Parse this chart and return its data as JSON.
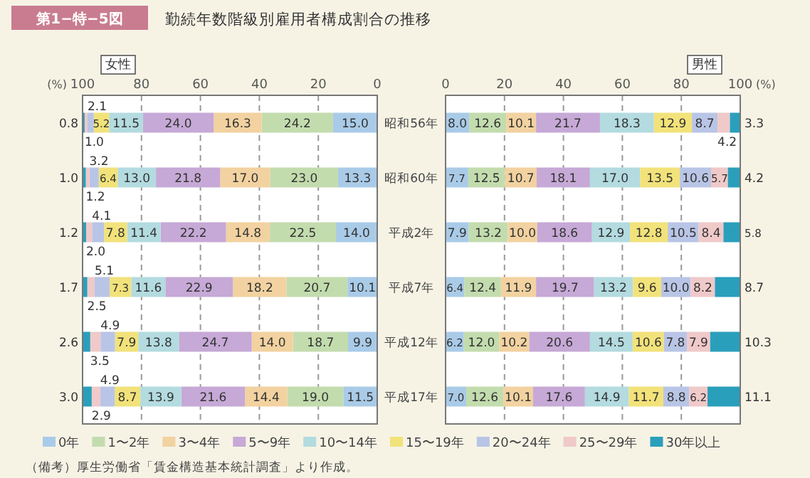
{
  "chart_data": [
    {
      "type": "bar",
      "orientation": "horizontal",
      "stacked": true,
      "title": "女性",
      "xlabel": "(%)",
      "categories": [
        null,
        null,
        null,
        null,
        null,
        null
      ],
      "xlim": [
        100,
        0
      ],
      "xticks": [
        100,
        80,
        60,
        40,
        20,
        0
      ],
      "grid": "x",
      "tick_labels": "x",
      "legend": "bottom",
      "annotations": [
        "第1−特−5図",
        "勤続年数階級別雇用者構成割合の推移",
        "（備考）厚生労働省「賃金構造基本統計調査」より作成。"
      ],
      "series": [
        {
          "name": "0年",
          "color": "#a9cbe8",
          "values": [
            15.0,
            13.3,
            14.0,
            10.1,
            9.9,
            11.5
          ],
          "value_labels": [
            "15.0",
            "13.3",
            "14.0",
            "10.1",
            "9.9",
            "11.5"
          ]
        },
        {
          "name": "1〜2年",
          "color": "#c3dcae",
          "values": [
            24.2,
            23.0,
            22.5,
            20.7,
            18.7,
            19.0
          ],
          "value_labels": [
            "24.2",
            "23.0",
            "22.5",
            "20.7",
            "18.7",
            "19.0"
          ]
        },
        {
          "name": "3〜4年",
          "color": "#f2d2a0",
          "values": [
            16.3,
            17.0,
            14.8,
            18.2,
            14.0,
            14.4
          ],
          "value_labels": [
            "16.3",
            "17.0",
            "14.8",
            "18.2",
            "14.0",
            "14.4"
          ]
        },
        {
          "name": "5〜9年",
          "color": "#c6a9d6",
          "values": [
            24.0,
            21.8,
            22.2,
            22.9,
            24.7,
            21.6
          ],
          "value_labels": [
            "24.0",
            "21.8",
            "22.2",
            "22.9",
            "24.7",
            "21.6"
          ]
        },
        {
          "name": "10〜14年",
          "color": "#b3dbe0",
          "values": [
            11.5,
            13.0,
            11.4,
            11.6,
            13.8,
            13.9
          ],
          "value_labels": [
            "11.5",
            "13.0",
            "11.4",
            "11.6",
            "13.8",
            "13.9"
          ]
        },
        {
          "name": "15〜19年",
          "color": "#f2e27a",
          "values": [
            5.2,
            6.4,
            7.8,
            7.3,
            7.9,
            8.7
          ],
          "value_labels": [
            "5.2",
            "6.4",
            "7.8",
            "7.3",
            "7.9",
            "8.7"
          ]
        },
        {
          "name": "20〜24年",
          "color": "#b9c5e6",
          "values": [
            2.1,
            3.2,
            4.1,
            5.1,
            4.9,
            4.9
          ],
          "value_labels": [
            "2.1",
            "3.2",
            "4.1",
            "5.1",
            "4.9",
            "4.9"
          ]
        },
        {
          "name": "25〜29年",
          "color": "#f0c9c9",
          "values": [
            1.0,
            1.2,
            2.0,
            2.5,
            3.5,
            2.9
          ],
          "value_labels": [
            "1.0",
            "1.2",
            "2.0",
            "2.5",
            "3.5",
            "2.9"
          ]
        },
        {
          "name": "30年以上",
          "color": "#2a9fbb",
          "values": [
            0.8,
            1.0,
            1.2,
            1.7,
            2.6,
            3.0
          ],
          "value_labels": [
            "0.8",
            "1.0",
            "1.2",
            "1.7",
            "2.6",
            "3.0"
          ]
        }
      ]
    },
    {
      "type": "bar",
      "orientation": "horizontal",
      "stacked": true,
      "title": "男性",
      "xlabel": "(%)",
      "categories": [
        "昭和56年",
        "昭和60年",
        "平成2年",
        "平成7年",
        "平成12年",
        "平成17年"
      ],
      "xlim": [
        0,
        100
      ],
      "xticks": [
        0,
        20,
        40,
        60,
        80,
        100
      ],
      "grid": "x",
      "series": [
        {
          "color": "#a9cbe8",
          "values": [
            8.0,
            7.7,
            7.9,
            6.4,
            6.2,
            7.0
          ],
          "value_labels": [
            "8.0",
            "7.7",
            "7.9",
            "6.4",
            "6.2",
            "7.0"
          ]
        },
        {
          "color": "#c3dcae",
          "values": [
            12.6,
            12.5,
            13.2,
            12.4,
            12.0,
            12.6
          ],
          "value_labels": [
            "12.6",
            "12.5",
            "13.2",
            "12.4",
            "12.0",
            "12.6"
          ]
        },
        {
          "color": "#f2d2a0",
          "values": [
            10.1,
            10.7,
            10.0,
            11.9,
            10.2,
            10.1
          ],
          "value_labels": [
            "10.1",
            "10.7",
            "10.0",
            "11.9",
            "10.2",
            "10.1"
          ]
        },
        {
          "color": "#c6a9d6",
          "values": [
            21.7,
            18.1,
            18.6,
            19.7,
            20.6,
            17.6
          ],
          "value_labels": [
            "21.7",
            "18.1",
            "18.6",
            "19.7",
            "20.6",
            "17.6"
          ]
        },
        {
          "color": "#b3dbe0",
          "values": [
            18.3,
            17.0,
            12.9,
            13.2,
            14.5,
            14.9
          ],
          "value_labels": [
            "18.3",
            "17.0",
            "12.9",
            "13.2",
            "14.5",
            "14.9"
          ]
        },
        {
          "color": "#f2e27a",
          "values": [
            12.9,
            13.5,
            12.8,
            9.6,
            10.6,
            11.7
          ],
          "value_labels": [
            "12.9",
            "13.5",
            "12.8",
            "9.6",
            "10.6",
            "11.7"
          ]
        },
        {
          "color": "#b9c5e6",
          "values": [
            8.7,
            10.6,
            10.5,
            10.0,
            7.8,
            8.8
          ],
          "value_labels": [
            "8.7",
            "10.6",
            "10.5",
            "10.0",
            "7.8",
            "8.8"
          ]
        },
        {
          "color": "#f0c9c9",
          "values": [
            4.2,
            5.7,
            8.4,
            8.2,
            7.9,
            6.2
          ],
          "value_labels": [
            "4.2",
            "5.7",
            "8.4",
            "8.2",
            "7.9",
            "6.2"
          ]
        },
        {
          "color": "#2a9fbb",
          "values": [
            3.3,
            4.2,
            5.8,
            8.7,
            10.3,
            11.1
          ],
          "value_labels": [
            "3.3",
            "4.2",
            "5.8",
            "8.7",
            "10.3",
            "11.1"
          ]
        }
      ]
    }
  ]
}
